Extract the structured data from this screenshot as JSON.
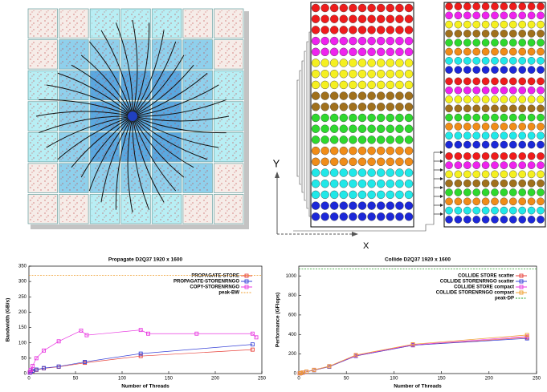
{
  "diagram": {
    "y_label": "Y",
    "x_label": "X"
  },
  "chart_data": [
    {
      "type": "line",
      "title": "Propagate D2Q37 1920 x 1600",
      "x_label": "Number of Threads",
      "y_label": "Bandwidth (GB/s)",
      "x": [
        1,
        2,
        4,
        8,
        16,
        32,
        60,
        120,
        240
      ],
      "xlim": [
        0,
        250
      ],
      "xticks": [
        0,
        50,
        100,
        150,
        200,
        250
      ],
      "ylim": [
        0,
        350
      ],
      "yticks": [
        0,
        50,
        100,
        150,
        200,
        250,
        300,
        350
      ],
      "legend": "upper right",
      "series": [
        {
          "name": "PROPAGATE-STORE",
          "color": "#e8413a",
          "values": [
            3,
            5,
            8,
            12,
            17,
            22,
            35,
            57,
            78
          ]
        },
        {
          "name": "PROPAGATE-STORENRNGO",
          "color": "#3a44d8",
          "values": [
            3,
            5,
            9,
            13,
            18,
            23,
            38,
            65,
            95
          ]
        },
        {
          "name": "COPY-STORENRNGO",
          "color": "#e83ae0",
          "x": [
            1,
            2,
            4,
            8,
            16,
            32,
            56,
            62,
            120,
            128,
            180,
            240,
            244
          ],
          "values": [
            5,
            12,
            25,
            50,
            75,
            105,
            140,
            125,
            142,
            130,
            130,
            130,
            118
          ]
        },
        {
          "name": "peak-BW",
          "color": "#f0a030",
          "dashed": true,
          "x": [
            0,
            250
          ],
          "values": [
            320,
            320
          ]
        }
      ]
    },
    {
      "type": "line",
      "title": "Collide D2Q37 1920 x 1600",
      "x_label": "Number of Threads",
      "y_label": "Performance (GFlops)",
      "x": [
        1,
        2,
        4,
        8,
        16,
        32,
        60,
        120,
        240
      ],
      "xlim": [
        0,
        250
      ],
      "xticks": [
        0,
        50,
        100,
        150,
        200,
        250
      ],
      "ylim": [
        0,
        1100
      ],
      "yticks": [
        0,
        200,
        400,
        600,
        800,
        1000
      ],
      "legend": "upper right",
      "series": [
        {
          "name": "COLLIDE STORE scatter",
          "color": "#e8413a",
          "values": [
            2,
            4,
            9,
            18,
            35,
            70,
            180,
            290,
            370
          ]
        },
        {
          "name": "COLLIDE STORENRNGO scatter",
          "color": "#3a44d8",
          "values": [
            2,
            4,
            9,
            18,
            35,
            70,
            180,
            290,
            360
          ]
        },
        {
          "name": "COLLIDE STORE compact",
          "color": "#e83ae0",
          "values": [
            2,
            5,
            10,
            20,
            38,
            75,
            185,
            295,
            380
          ]
        },
        {
          "name": "COLLIDE STORENRNGO compact",
          "color": "#f0a030",
          "values": [
            2,
            5,
            10,
            20,
            38,
            75,
            190,
            300,
            395
          ]
        },
        {
          "name": "peak-DP",
          "color": "#2ca02c",
          "dashed": true,
          "x": [
            0,
            250
          ],
          "values": [
            1070,
            1070
          ]
        }
      ]
    }
  ]
}
